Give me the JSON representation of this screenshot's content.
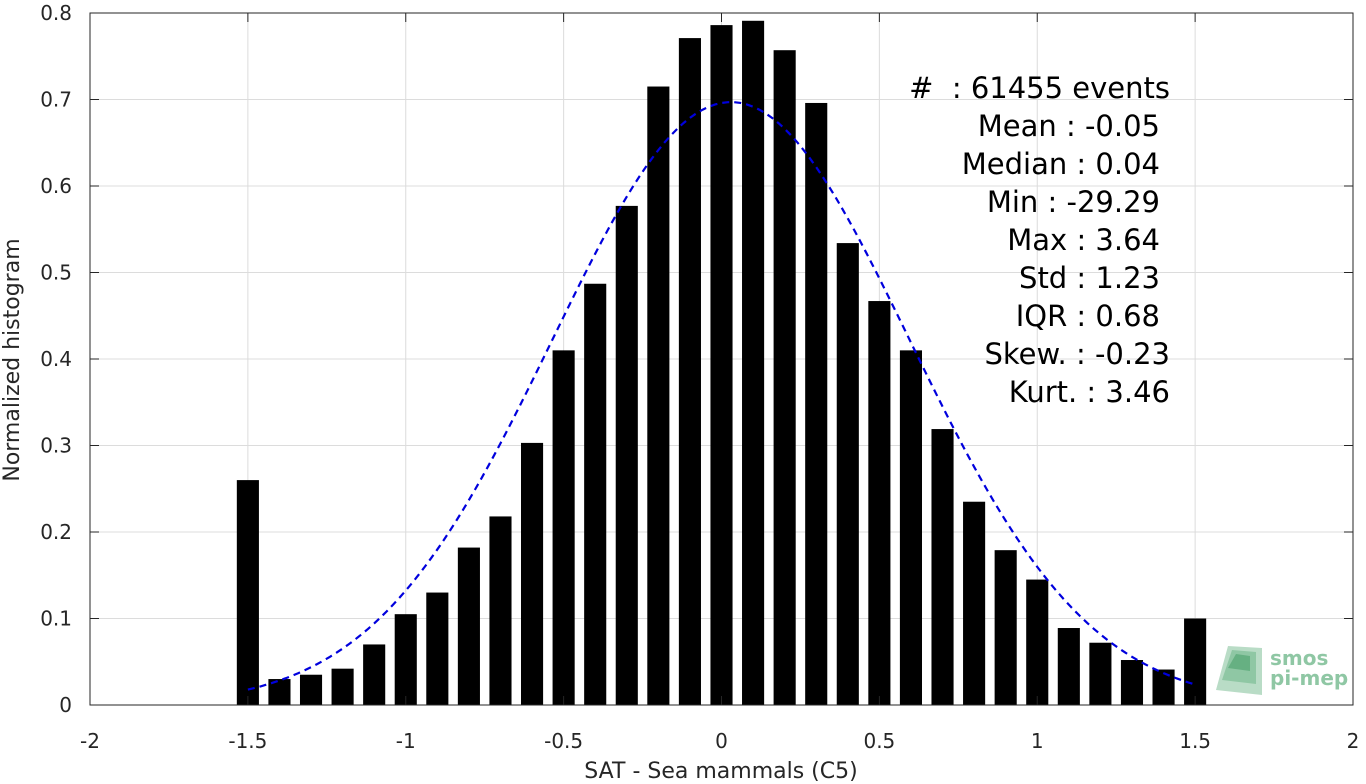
{
  "chart_data": {
    "type": "bar",
    "xlabel": "SAT - Sea mammals (C5)",
    "ylabel": "Normalized histogram",
    "xlim": [
      -2,
      2
    ],
    "ylim": [
      0,
      0.8
    ],
    "xticks": [
      -2,
      -1.5,
      -1,
      -0.5,
      0,
      0.5,
      1,
      1.5,
      2
    ],
    "xtick_labels": [
      "-2",
      "-1.5",
      "-1",
      "-0.5",
      "0",
      "0.5",
      "1",
      "1.5",
      "2"
    ],
    "yticks": [
      0,
      0.1,
      0.2,
      0.3,
      0.4,
      0.5,
      0.6,
      0.7,
      0.8
    ],
    "ytick_labels": [
      "0",
      "0.1",
      "0.2",
      "0.3",
      "0.4",
      "0.5",
      "0.6",
      "0.7",
      "0.8"
    ],
    "grid": true,
    "bar_width": 0.07,
    "x": [
      -1.5,
      -1.4,
      -1.3,
      -1.2,
      -1.1,
      -1.0,
      -0.9,
      -0.8,
      -0.7,
      -0.6,
      -0.5,
      -0.4,
      -0.3,
      -0.2,
      -0.1,
      0.0,
      0.1,
      0.2,
      0.3,
      0.4,
      0.5,
      0.6,
      0.7,
      0.8,
      0.9,
      1.0,
      1.1,
      1.2,
      1.3,
      1.4,
      1.5
    ],
    "values": [
      0.26,
      0.03,
      0.035,
      0.042,
      0.07,
      0.105,
      0.13,
      0.182,
      0.218,
      0.303,
      0.41,
      0.487,
      0.577,
      0.715,
      0.771,
      0.786,
      0.791,
      0.757,
      0.696,
      0.534,
      0.467,
      0.41,
      0.319,
      0.235,
      0.179,
      0.145,
      0.089,
      0.072,
      0.052,
      0.041,
      0.1
    ],
    "fit_curve": {
      "style": "dashed",
      "color": "#0000dd",
      "x_range": [
        -1.5,
        1.5
      ],
      "mean": 0.03,
      "peak": 0.697,
      "sigma": 0.565
    },
    "stats": [
      "#  : 61455 events",
      "Mean : -0.05",
      "Median : 0.04",
      "Min : -29.29",
      "Max : 3.64",
      "Std : 1.23",
      "IQR : 0.68",
      "Skew. : -0.23",
      "Kurt. : 3.46"
    ],
    "logo": [
      "smos",
      "pi-mep"
    ]
  }
}
